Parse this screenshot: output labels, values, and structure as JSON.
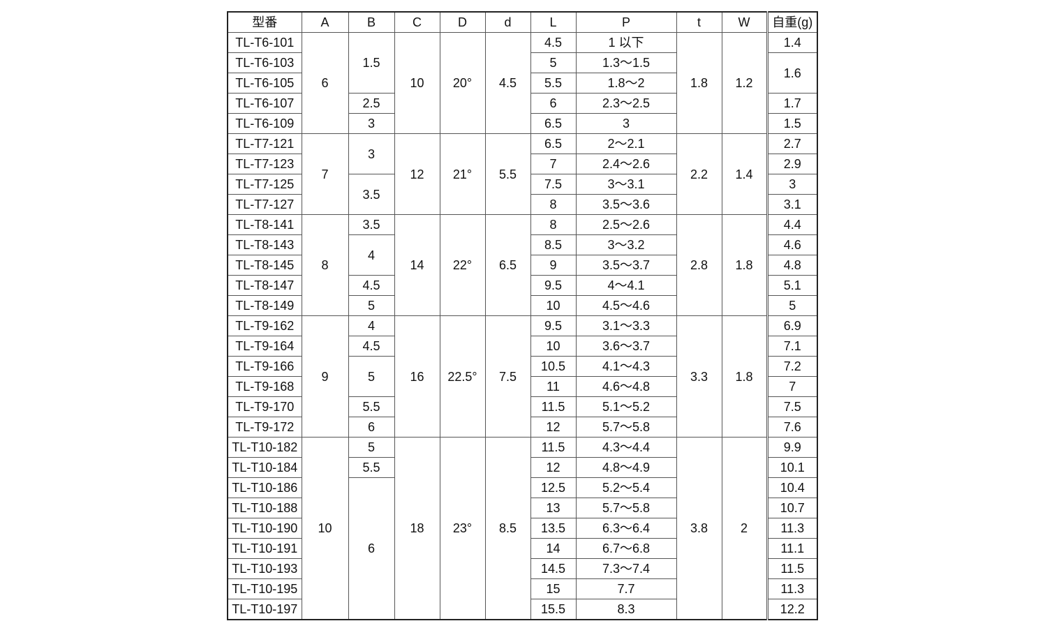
{
  "headers": {
    "model": "型番",
    "A": "A",
    "B": "B",
    "C": "C",
    "D": "D",
    "d": "d",
    "L": "L",
    "P": "P",
    "t": "t",
    "W": "W",
    "weight": "自重(g)"
  },
  "rows": [
    {
      "model": "TL-T6-101",
      "A": [
        "6",
        5
      ],
      "B": [
        "1.5",
        3
      ],
      "C": [
        "10",
        5
      ],
      "D": [
        "20°",
        5
      ],
      "d": [
        "4.5",
        5
      ],
      "L": "4.5",
      "P": "1 以下",
      "t": [
        "1.8",
        5
      ],
      "W": [
        "1.2",
        5
      ],
      "weight": "1.4"
    },
    {
      "model": "TL-T6-103",
      "L": "5",
      "P": "1.3～1.5",
      "weight": [
        "1.6",
        2
      ]
    },
    {
      "model": "TL-T6-105",
      "L": "5.5",
      "P": "1.8～2"
    },
    {
      "model": "TL-T6-107",
      "B": "2.5",
      "L": "6",
      "P": "2.3～2.5",
      "weight": "1.7"
    },
    {
      "model": "TL-T6-109",
      "B": "3",
      "L": "6.5",
      "P": "3",
      "weight": "1.5"
    },
    {
      "model": "TL-T7-121",
      "A": [
        "7",
        4
      ],
      "B": [
        "3",
        2
      ],
      "C": [
        "12",
        4
      ],
      "D": [
        "21°",
        4
      ],
      "d": [
        "5.5",
        4
      ],
      "L": "6.5",
      "P": "2～2.1",
      "t": [
        "2.2",
        4
      ],
      "W": [
        "1.4",
        4
      ],
      "weight": "2.7"
    },
    {
      "model": "TL-T7-123",
      "L": "7",
      "P": "2.4～2.6",
      "weight": "2.9"
    },
    {
      "model": "TL-T7-125",
      "B": [
        "3.5",
        2
      ],
      "L": "7.5",
      "P": "3～3.1",
      "weight": "3"
    },
    {
      "model": "TL-T7-127",
      "L": "8",
      "P": "3.5～3.6",
      "weight": "3.1"
    },
    {
      "model": "TL-T8-141",
      "A": [
        "8",
        5
      ],
      "B": "3.5",
      "C": [
        "14",
        5
      ],
      "D": [
        "22°",
        5
      ],
      "d": [
        "6.5",
        5
      ],
      "L": "8",
      "P": "2.5～2.6",
      "t": [
        "2.8",
        5
      ],
      "W": [
        "1.8",
        5
      ],
      "weight": "4.4"
    },
    {
      "model": "TL-T8-143",
      "B": [
        "4",
        2
      ],
      "L": "8.5",
      "P": "3～3.2",
      "weight": "4.6"
    },
    {
      "model": "TL-T8-145",
      "L": "9",
      "P": "3.5～3.7",
      "weight": "4.8"
    },
    {
      "model": "TL-T8-147",
      "B": "4.5",
      "L": "9.5",
      "P": "4～4.1",
      "weight": "5.1"
    },
    {
      "model": "TL-T8-149",
      "B": "5",
      "L": "10",
      "P": "4.5～4.6",
      "weight": "5"
    },
    {
      "model": "TL-T9-162",
      "A": [
        "9",
        6
      ],
      "B": "4",
      "C": [
        "16",
        6
      ],
      "D": [
        "22.5°",
        6
      ],
      "d": [
        "7.5",
        6
      ],
      "L": "9.5",
      "P": "3.1～3.3",
      "t": [
        "3.3",
        6
      ],
      "W": [
        "1.8",
        6
      ],
      "weight": "6.9"
    },
    {
      "model": "TL-T9-164",
      "B": "4.5",
      "L": "10",
      "P": "3.6～3.7",
      "weight": "7.1"
    },
    {
      "model": "TL-T9-166",
      "B": [
        "5",
        2
      ],
      "L": "10.5",
      "P": "4.1～4.3",
      "weight": "7.2"
    },
    {
      "model": "TL-T9-168",
      "L": "11",
      "P": "4.6～4.8",
      "weight": "7"
    },
    {
      "model": "TL-T9-170",
      "B": "5.5",
      "L": "11.5",
      "P": "5.1～5.2",
      "weight": "7.5"
    },
    {
      "model": "TL-T9-172",
      "B": "6",
      "L": "12",
      "P": "5.7～5.8",
      "weight": "7.6"
    },
    {
      "model": "TL-T10-182",
      "A": [
        "10",
        9
      ],
      "B": "5",
      "C": [
        "18",
        9
      ],
      "D": [
        "23°",
        9
      ],
      "d": [
        "8.5",
        9
      ],
      "L": "11.5",
      "P": "4.3～4.4",
      "t": [
        "3.8",
        9
      ],
      "W": [
        "2",
        9
      ],
      "weight": "9.9"
    },
    {
      "model": "TL-T10-184",
      "B": "5.5",
      "L": "12",
      "P": "4.8～4.9",
      "weight": "10.1"
    },
    {
      "model": "TL-T10-186",
      "B": [
        "6",
        7
      ],
      "L": "12.5",
      "P": "5.2～5.4",
      "weight": "10.4"
    },
    {
      "model": "TL-T10-188",
      "L": "13",
      "P": "5.7～5.8",
      "weight": "10.7"
    },
    {
      "model": "TL-T10-190",
      "L": "13.5",
      "P": "6.3～6.4",
      "weight": "11.3"
    },
    {
      "model": "TL-T10-191",
      "L": "14",
      "P": "6.7～6.8",
      "weight": "11.1"
    },
    {
      "model": "TL-T10-193",
      "L": "14.5",
      "P": "7.3～7.4",
      "weight": "11.5"
    },
    {
      "model": "TL-T10-195",
      "L": "15",
      "P": "7.7",
      "weight": "11.3"
    },
    {
      "model": "TL-T10-197",
      "L": "15.5",
      "P": "8.3",
      "weight": "12.2"
    }
  ]
}
